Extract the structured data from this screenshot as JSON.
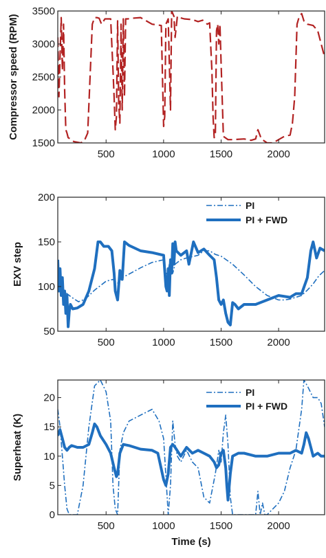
{
  "chart_data": [
    {
      "type": "line",
      "title": "",
      "xlabel": "",
      "ylabel": "Compressor speed (RPM)",
      "xlim": [
        80,
        2400
      ],
      "ylim": [
        1500,
        3500
      ],
      "xticks": [
        500,
        1000,
        1500,
        2000
      ],
      "yticks": [
        1500,
        2000,
        2500,
        3000,
        3500
      ],
      "legend": "none",
      "series": [
        {
          "color": "#b22222",
          "style": "dashed",
          "x": [
            80,
            90,
            100,
            110,
            120,
            130,
            140,
            150,
            160,
            170,
            190,
            220,
            250,
            280,
            310,
            340,
            380,
            400,
            420,
            440,
            460,
            490,
            520,
            540,
            560,
            570,
            580,
            590,
            600,
            610,
            620,
            630,
            640,
            650,
            660,
            670,
            690,
            720,
            800,
            900,
            980,
            1000,
            1010,
            1020,
            1040,
            1060,
            1070,
            1090,
            1100,
            1120,
            1140,
            1180,
            1250,
            1300,
            1340,
            1380,
            1400,
            1420,
            1430,
            1440,
            1450,
            1460,
            1470,
            1480,
            1490,
            1500,
            1520,
            1560,
            1600,
            1700,
            1760,
            1800,
            1820,
            1850,
            1900,
            1950,
            2000,
            2050,
            2100,
            2120,
            2140,
            2160,
            2180,
            2200,
            2220,
            2250,
            2300,
            2340,
            2370,
            2400
          ],
          "y": [
            3100,
            2200,
            2800,
            3400,
            2600,
            3300,
            2300,
            1700,
            1650,
            1580,
            1560,
            1520,
            1510,
            1500,
            1530,
            1650,
            3300,
            3400,
            3400,
            3390,
            3300,
            3380,
            3380,
            3380,
            2600,
            2200,
            1700,
            1900,
            3350,
            2100,
            1800,
            3300,
            2000,
            3380,
            2200,
            3380,
            3380,
            3390,
            3400,
            3300,
            3280,
            1750,
            1900,
            3300,
            3380,
            2000,
            3500,
            3420,
            3100,
            3420,
            3400,
            3380,
            3370,
            3340,
            3360,
            3300,
            3320,
            2600,
            1900,
            1580,
            1600,
            3200,
            3300,
            3000,
            3300,
            2700,
            1600,
            1550,
            1550,
            1560,
            1540,
            1560,
            1700,
            1560,
            1500,
            1500,
            1550,
            1600,
            1620,
            1800,
            2200,
            3300,
            3420,
            3460,
            3350,
            3300,
            3280,
            3200,
            3000,
            2800
          ]
        }
      ]
    },
    {
      "type": "line",
      "title": "",
      "xlabel": "",
      "ylabel": "EXV step",
      "xlim": [
        80,
        2400
      ],
      "ylim": [
        50,
        200
      ],
      "xticks": [
        500,
        1000,
        1500,
        2000
      ],
      "yticks": [
        50,
        100,
        150,
        200
      ],
      "legend": "top-right",
      "series": [
        {
          "name": "PI",
          "color": "#1f6fbf",
          "style": "dashdot",
          "x": [
            80,
            100,
            130,
            160,
            200,
            260,
            320,
            400,
            460,
            500,
            560,
            600,
            640,
            700,
            800,
            900,
            1000,
            1030,
            1050,
            1080,
            1100,
            1150,
            1200,
            1300,
            1350,
            1400,
            1450,
            1500,
            1600,
            1700,
            1800,
            1900,
            2000,
            2050,
            2100,
            2150,
            2200,
            2250,
            2300,
            2350,
            2400
          ],
          "y": [
            105,
            110,
            96,
            92,
            88,
            83,
            86,
            96,
            102,
            106,
            108,
            104,
            110,
            114,
            121,
            127,
            130,
            110,
            125,
            115,
            125,
            130,
            132,
            135,
            140,
            140,
            136,
            134,
            125,
            113,
            100,
            90,
            85,
            85,
            86,
            88,
            90,
            96,
            103,
            112,
            118
          ]
        },
        {
          "name": "PI + FWD",
          "color": "#1f6fbf",
          "style": "solid",
          "x": [
            80,
            90,
            100,
            110,
            120,
            130,
            140,
            150,
            160,
            170,
            180,
            190,
            210,
            250,
            300,
            350,
            400,
            430,
            450,
            480,
            520,
            550,
            570,
            580,
            600,
            620,
            640,
            660,
            700,
            800,
            900,
            1000,
            1020,
            1030,
            1040,
            1050,
            1060,
            1070,
            1080,
            1090,
            1100,
            1110,
            1150,
            1200,
            1220,
            1260,
            1300,
            1350,
            1400,
            1440,
            1460,
            1480,
            1500,
            1520,
            1540,
            1560,
            1580,
            1600,
            1620,
            1650,
            1700,
            1800,
            1900,
            2000,
            2100,
            2150,
            2200,
            2250,
            2280,
            2300,
            2330,
            2360,
            2400
          ],
          "y": [
            130,
            95,
            120,
            90,
            110,
            80,
            95,
            70,
            90,
            55,
            72,
            80,
            75,
            76,
            80,
            95,
            120,
            150,
            150,
            145,
            145,
            140,
            115,
            95,
            85,
            118,
            108,
            150,
            146,
            140,
            138,
            135,
            100,
            95,
            120,
            90,
            130,
            115,
            148,
            125,
            150,
            140,
            135,
            140,
            125,
            150,
            138,
            142,
            135,
            130,
            110,
            85,
            80,
            85,
            70,
            60,
            57,
            82,
            80,
            75,
            80,
            80,
            85,
            90,
            88,
            92,
            92,
            110,
            140,
            150,
            132,
            143,
            140
          ]
        }
      ]
    },
    {
      "type": "line",
      "title": "",
      "xlabel": "Time (s)",
      "ylabel": "Superheat (K)",
      "xlim": [
        80,
        2400
      ],
      "ylim": [
        0,
        23
      ],
      "xticks": [
        500,
        1000,
        1500,
        2000
      ],
      "yticks": [
        0,
        5,
        10,
        15,
        20
      ],
      "legend": "top-right",
      "series": [
        {
          "name": "PI",
          "color": "#1f6fbf",
          "style": "dashdot",
          "x": [
            80,
            100,
            120,
            140,
            160,
            180,
            200,
            250,
            300,
            350,
            400,
            450,
            500,
            540,
            560,
            580,
            600,
            620,
            650,
            700,
            800,
            900,
            960,
            1000,
            1040,
            1060,
            1080,
            1100,
            1120,
            1150,
            1200,
            1250,
            1300,
            1350,
            1400,
            1450,
            1480,
            1500,
            1520,
            1540,
            1560,
            1580,
            1600,
            1650,
            1700,
            1750,
            1800,
            1820,
            1840,
            1860,
            1880,
            1900,
            2000,
            2050,
            2100,
            2150,
            2200,
            2220,
            2250,
            2300,
            2340,
            2370,
            2400
          ],
          "y": [
            18,
            15,
            10,
            5,
            1,
            0,
            0,
            0,
            5,
            15,
            22,
            23,
            21,
            16,
            5,
            1,
            0,
            11,
            14,
            16,
            17,
            18,
            16,
            13,
            0,
            5,
            16,
            12,
            10,
            9,
            11,
            9,
            8,
            3,
            2,
            7,
            11,
            9,
            14,
            17,
            12,
            3,
            0,
            0,
            0,
            0,
            0,
            4,
            0,
            2,
            0,
            0,
            2,
            4,
            8,
            11,
            18,
            23,
            22,
            20,
            20,
            19,
            15
          ]
        },
        {
          "name": "PI + FWD",
          "color": "#1f6fbf",
          "style": "solid",
          "x": [
            80,
            100,
            120,
            140,
            160,
            180,
            200,
            250,
            300,
            350,
            380,
            400,
            420,
            450,
            500,
            540,
            570,
            590,
            600,
            620,
            650,
            700,
            800,
            900,
            950,
            1000,
            1020,
            1040,
            1060,
            1080,
            1100,
            1150,
            1200,
            1250,
            1300,
            1350,
            1400,
            1440,
            1460,
            1480,
            1500,
            1520,
            1540,
            1550,
            1560,
            1580,
            1600,
            1650,
            1700,
            1800,
            1900,
            2000,
            2050,
            2100,
            2150,
            2200,
            2220,
            2240,
            2260,
            2300,
            2340,
            2370,
            2400
          ],
          "y": [
            13.5,
            14.5,
            13,
            11.5,
            11,
            11.5,
            11.8,
            11.5,
            11.5,
            12,
            14,
            15.5,
            15,
            13.5,
            12,
            10.5,
            8,
            6.5,
            7,
            10.5,
            12,
            11.8,
            11.2,
            11,
            10.5,
            6,
            5,
            7,
            11.5,
            12,
            11.5,
            10,
            11.5,
            10.5,
            11,
            10.5,
            10,
            9,
            8,
            8.5,
            10.5,
            11,
            8,
            5,
            2.5,
            7,
            10,
            10.5,
            10.5,
            10,
            10,
            10.5,
            10.5,
            10.5,
            11,
            10.5,
            12,
            14,
            13,
            10,
            10.5,
            10,
            10
          ]
        }
      ]
    }
  ]
}
